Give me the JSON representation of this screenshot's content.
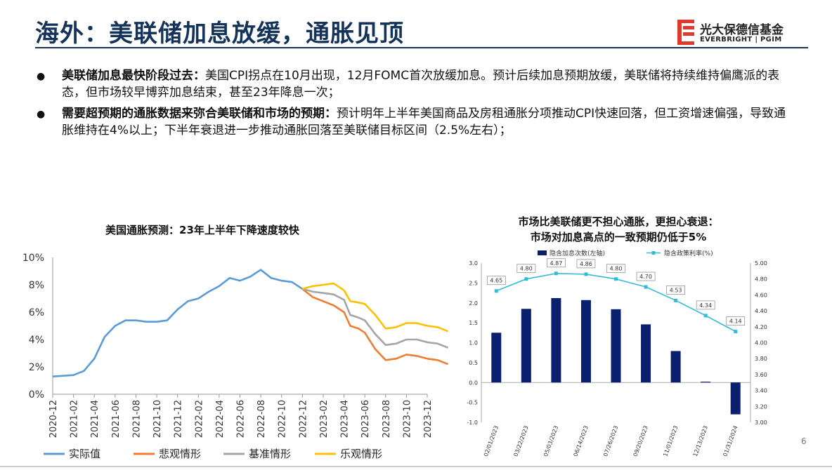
{
  "title": "海外：美联储加息放缓，通胀见顶",
  "logo": {
    "cn": "光大保德信基金",
    "en": "EVERBRIGHT | PGIM"
  },
  "bullets": [
    {
      "bold": "美联储加息最快阶段过去：",
      "text": "美国CPI拐点在10月出现，12月FOMC首次放缓加息。预计后续加息预期放缓，美联储将持续维持偏鹰派的表态，但市场较早博弈加息结束，甚至23年降息一次；"
    },
    {
      "bold": "需要超预期的通胀数据来弥合美联储和市场的预期：",
      "text": "预计明年上半年美国商品及房租通胀分项推动CPI快速回落，但工资增速偏强，导致通胀维持在4%以上；下半年衰退进一步推动通胀回落至美联储目标区间（2.5%左右）；"
    }
  ],
  "page_number": "6",
  "colors": {
    "title": "#14335a",
    "actual": "#5b9bd5",
    "pessimistic": "#ed7d31",
    "base": "#a5a5a5",
    "optimistic": "#ffc000",
    "bar": "#0a1f6e",
    "rate": "#33bcd6"
  },
  "chart_data": [
    {
      "type": "line",
      "title": "美国通胀预测：23年上半年下降速度较快",
      "x": [
        "2020-12",
        "2021-02",
        "2021-04",
        "2021-06",
        "2021-08",
        "2021-10",
        "2021-12",
        "2022-02",
        "2022-04",
        "2022-06",
        "2022-08",
        "2022-10",
        "2022-12",
        "2023-02",
        "2023-04",
        "2023-06",
        "2023-08",
        "2023-10",
        "2023-12"
      ],
      "y_ticks": [
        "0%",
        "2%",
        "4%",
        "6%",
        "8%",
        "10%"
      ],
      "ylim": [
        0,
        10
      ],
      "grid": false,
      "legend_position": "bottom",
      "series": [
        {
          "name": "实际值",
          "color": "#5b9bd5",
          "points": [
            [
              0,
              1.3
            ],
            [
              1,
              1.4
            ],
            [
              1.5,
              1.7
            ],
            [
              2,
              2.6
            ],
            [
              2.5,
              4.2
            ],
            [
              3,
              5.0
            ],
            [
              3.5,
              5.4
            ],
            [
              4,
              5.4
            ],
            [
              4.5,
              5.3
            ],
            [
              5,
              5.3
            ],
            [
              5.5,
              5.4
            ],
            [
              6,
              6.2
            ],
            [
              6.5,
              6.8
            ],
            [
              7,
              7.0
            ],
            [
              7.5,
              7.5
            ],
            [
              8,
              7.9
            ],
            [
              8.5,
              8.5
            ],
            [
              9,
              8.3
            ],
            [
              9.5,
              8.6
            ],
            [
              10,
              9.1
            ],
            [
              10.5,
              8.5
            ],
            [
              11,
              8.3
            ],
            [
              11.5,
              8.2
            ],
            [
              12,
              7.7
            ]
          ]
        },
        {
          "name": "悲观情形",
          "color": "#ed7d31",
          "points": [
            [
              12,
              7.7
            ],
            [
              12.5,
              7.1
            ],
            [
              13,
              6.8
            ],
            [
              13.5,
              6.5
            ],
            [
              14,
              6.0
            ],
            [
              14.3,
              5.0
            ],
            [
              14.7,
              4.8
            ],
            [
              15,
              4.5
            ],
            [
              15.5,
              3.3
            ],
            [
              16,
              2.5
            ],
            [
              16.5,
              2.6
            ],
            [
              17,
              2.9
            ],
            [
              17.5,
              2.8
            ],
            [
              18,
              2.6
            ],
            [
              18.5,
              2.5
            ],
            [
              19,
              2.2
            ]
          ]
        },
        {
          "name": "基准情形",
          "color": "#a5a5a5",
          "points": [
            [
              12,
              7.7
            ],
            [
              12.5,
              7.5
            ],
            [
              13,
              7.4
            ],
            [
              13.5,
              7.3
            ],
            [
              14,
              6.9
            ],
            [
              14.3,
              5.8
            ],
            [
              14.7,
              5.6
            ],
            [
              15,
              5.4
            ],
            [
              15.5,
              4.4
            ],
            [
              16,
              3.6
            ],
            [
              16.5,
              3.7
            ],
            [
              17,
              4.0
            ],
            [
              17.5,
              4.0
            ],
            [
              18,
              3.8
            ],
            [
              18.5,
              3.7
            ],
            [
              19,
              3.4
            ]
          ]
        },
        {
          "name": "乐观情形",
          "color": "#ffc000",
          "points": [
            [
              12,
              7.7
            ],
            [
              12.5,
              7.9
            ],
            [
              13,
              8.0
            ],
            [
              13.5,
              8.1
            ],
            [
              14,
              7.6
            ],
            [
              14.3,
              6.8
            ],
            [
              14.7,
              6.7
            ],
            [
              15,
              6.6
            ],
            [
              15.5,
              5.8
            ],
            [
              16,
              4.8
            ],
            [
              16.5,
              4.9
            ],
            [
              17,
              5.2
            ],
            [
              17.5,
              5.2
            ],
            [
              18,
              5.0
            ],
            [
              18.5,
              4.9
            ],
            [
              19,
              4.6
            ]
          ]
        }
      ]
    },
    {
      "type": "bar+line",
      "title_line1": "市场比美联储更不担心通胀，更担心衰退：",
      "title_line2": "市场对加息高点的一致预期仍低于5%",
      "categories": [
        "02/01/2023",
        "03/22/2023",
        "05/03/2023",
        "06/14/2023",
        "07/26/2023",
        "09/20/2023",
        "11/01/2023",
        "12/13/2023",
        "01/31/2024"
      ],
      "left_ticks": [
        "-1.0",
        "-0.5",
        "0.0",
        "0.5",
        "1.0",
        "1.5",
        "2.0",
        "2.5",
        "3.0"
      ],
      "left_ylim": [
        -1.0,
        3.0
      ],
      "right_ticks": [
        "3.00",
        "3.20",
        "3.40",
        "3.60",
        "3.80",
        "4.00",
        "4.20",
        "4.40",
        "4.60",
        "4.80",
        "5.00"
      ],
      "right_ylim": [
        3.0,
        5.0
      ],
      "series": [
        {
          "name": "隐含加息次数(左轴)",
          "axis": "left",
          "type": "bar",
          "values": [
            1.25,
            1.85,
            2.12,
            2.07,
            1.84,
            1.46,
            0.79,
            0.02,
            -0.8
          ]
        },
        {
          "name": "隐含政策利率(%)",
          "axis": "right",
          "type": "line",
          "values": [
            4.65,
            4.8,
            4.87,
            4.86,
            4.8,
            4.7,
            4.53,
            4.34,
            4.14
          ],
          "labels": [
            "4.65",
            "4.80",
            "4.87",
            "4.86",
            "4.80",
            "4.70",
            "4.53",
            "4.34",
            "4.14"
          ]
        }
      ]
    }
  ]
}
